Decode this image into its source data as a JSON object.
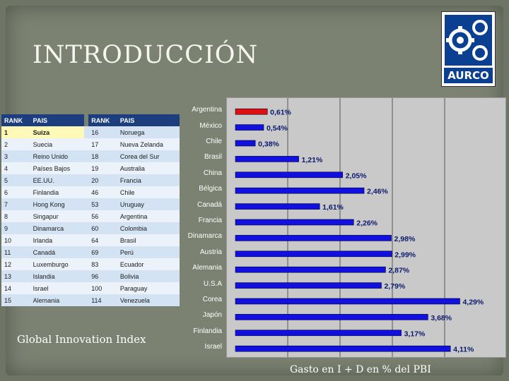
{
  "title": "INTRODUCCIÓN",
  "logo": {
    "text": "AURCO",
    "icon": "gear-logo-icon"
  },
  "rank_table": {
    "headers": [
      "RANK",
      "PAIS",
      "RANK",
      "PAIS"
    ],
    "left": [
      {
        "rank": "1",
        "pais": "Suiza"
      },
      {
        "rank": "2",
        "pais": "Suecia"
      },
      {
        "rank": "3",
        "pais": "Reino Unido"
      },
      {
        "rank": "4",
        "pais": "Países Bajos"
      },
      {
        "rank": "5",
        "pais": "EE.UU."
      },
      {
        "rank": "6",
        "pais": "Finlandia"
      },
      {
        "rank": "7",
        "pais": "Hong Kong"
      },
      {
        "rank": "8",
        "pais": "Singapur"
      },
      {
        "rank": "9",
        "pais": "Dinamarca"
      },
      {
        "rank": "10",
        "pais": "Irlanda"
      },
      {
        "rank": "11",
        "pais": "Canadá"
      },
      {
        "rank": "12",
        "pais": "Luxemburgo"
      },
      {
        "rank": "13",
        "pais": "Islandia"
      },
      {
        "rank": "14",
        "pais": "Israel"
      },
      {
        "rank": "15",
        "pais": "Alemania"
      }
    ],
    "right": [
      {
        "rank": "16",
        "pais": "Noruega"
      },
      {
        "rank": "17",
        "pais": "Nueva Zelanda"
      },
      {
        "rank": "18",
        "pais": "Corea del Sur"
      },
      {
        "rank": "19",
        "pais": "Australia"
      },
      {
        "rank": "20",
        "pais": "Francia"
      },
      {
        "rank": "46",
        "pais": "Chile"
      },
      {
        "rank": "53",
        "pais": "Uruguay"
      },
      {
        "rank": "56",
        "pais": "Argentina"
      },
      {
        "rank": "60",
        "pais": "Colombia"
      },
      {
        "rank": "64",
        "pais": "Brasil"
      },
      {
        "rank": "69",
        "pais": "Perú"
      },
      {
        "rank": "83",
        "pais": "Ecuador"
      },
      {
        "rank": "96",
        "pais": "Bolivia"
      },
      {
        "rank": "100",
        "pais": "Paraguay"
      },
      {
        "rank": "114",
        "pais": "Venezuela"
      }
    ]
  },
  "gii_label": "Global Innovation Index",
  "caption": "Gasto en I + D en % del PBI",
  "colors": {
    "bar": "#1010e0",
    "highlight_bar": "#e01010",
    "header": "#1d3e7e"
  },
  "chart_data": {
    "type": "bar",
    "orientation": "horizontal",
    "categories": [
      "Argentina",
      "México",
      "Chile",
      "Brasil",
      "China",
      "Bélgica",
      "Canadá",
      "Francia",
      "Dinamarca",
      "Austria",
      "Alemania",
      "U.S.A",
      "Corea",
      "Japón",
      "Finlandia",
      "Israel"
    ],
    "values": [
      0.61,
      0.54,
      0.38,
      1.21,
      2.05,
      2.46,
      1.61,
      2.26,
      2.98,
      2.99,
      2.87,
      2.79,
      4.29,
      3.68,
      3.17,
      4.11
    ],
    "value_labels": [
      "0,61%",
      "0,54%",
      "0,38%",
      "1,21%",
      "2,05%",
      "2,46%",
      "1,61%",
      "2,26%",
      "2,98%",
      "2,99%",
      "2,87%",
      "2,79%",
      "4,29%",
      "3,68%",
      "3,17%",
      "4,11%"
    ],
    "highlight_index": 0,
    "xlim": [
      0,
      5
    ],
    "gridlines": [
      1,
      2,
      3,
      4
    ],
    "title": "",
    "xlabel": "",
    "ylabel": "",
    "legend": "none"
  }
}
